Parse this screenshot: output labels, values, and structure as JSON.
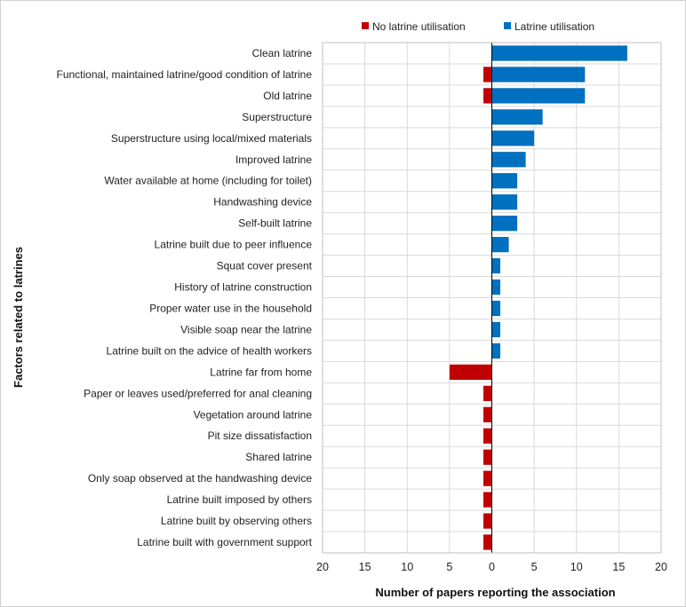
{
  "chart_data": {
    "type": "bar",
    "orientation": "horizontal-diverging",
    "title": "",
    "xlabel": "Number of papers reporting the association",
    "ylabel": "Factors related to latrines",
    "xlim": [
      -20,
      20
    ],
    "xticks": [
      -20,
      -15,
      -10,
      -5,
      0,
      5,
      10,
      15,
      20
    ],
    "xtick_labels": [
      "20",
      "15",
      "10",
      "5",
      "0",
      "5",
      "10",
      "15",
      "20"
    ],
    "grid": true,
    "legend_position": "top",
    "categories": [
      "Clean latrine",
      "Functional, maintained latrine/good condition of latrine",
      "Old latrine",
      "Superstructure",
      "Superstructure using local/mixed materials",
      "Improved latrine",
      "Water available at home (including for toilet)",
      "Handwashing device",
      "Self-built latrine",
      "Latrine built due to peer influence",
      "Squat cover present",
      "History of latrine construction",
      "Proper water use in the household",
      "Visible soap near the latrine",
      "Latrine built on the advice of health workers",
      "Latrine far from home",
      "Paper or leaves used/preferred for anal cleaning",
      "Vegetation around latrine",
      "Pit size dissatisfaction",
      "Shared latrine",
      "Only soap observed at the handwashing device",
      "Latrine built imposed by others",
      "Latrine built by observing others",
      "Latrine built with government support"
    ],
    "series": [
      {
        "name": "No latrine utilisation",
        "color": "#c00000",
        "direction": "left",
        "values": [
          0,
          1,
          1,
          0,
          0,
          0,
          0,
          0,
          0,
          0,
          0,
          0,
          0,
          0,
          0,
          5,
          1,
          1,
          1,
          1,
          1,
          1,
          1,
          1
        ]
      },
      {
        "name": "Latrine utilisation",
        "color": "#0070c0",
        "direction": "right",
        "values": [
          16,
          11,
          11,
          6,
          5,
          4,
          3,
          3,
          3,
          2,
          1,
          1,
          1,
          1,
          1,
          0,
          0,
          0,
          0,
          0,
          0,
          0,
          0,
          0
        ]
      }
    ]
  }
}
